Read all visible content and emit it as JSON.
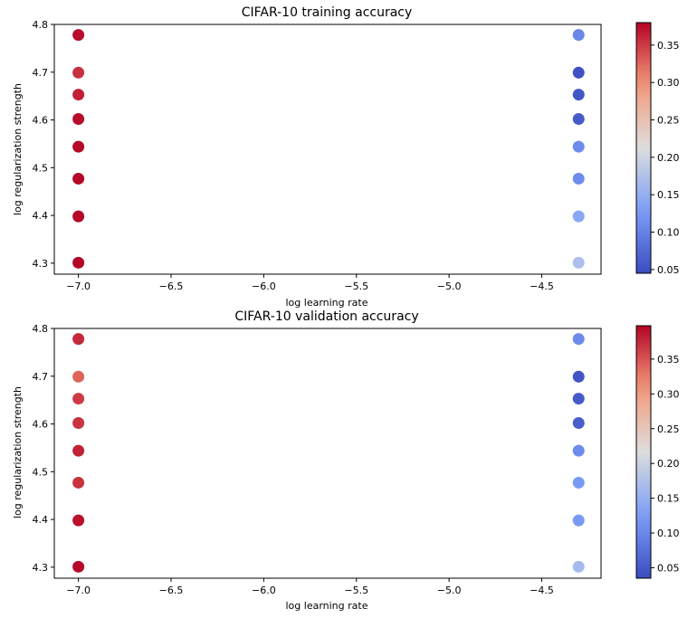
{
  "chart_data": [
    {
      "type": "scatter",
      "title": "CIFAR-10 training accuracy",
      "xlabel": "log learning rate",
      "ylabel": "log regularization strength",
      "xlim": [
        -7.13,
        -4.18
      ],
      "ylim": [
        4.277,
        4.8
      ],
      "xticks": [
        -7.0,
        -6.5,
        -6.0,
        -5.5,
        -5.0,
        -4.5
      ],
      "xtick_labels": [
        "−7.0",
        "−6.5",
        "−6.0",
        "−5.5",
        "−5.0",
        "−4.5"
      ],
      "yticks": [
        4.3,
        4.4,
        4.5,
        4.6,
        4.7,
        4.8
      ],
      "ytick_labels": [
        "4.3",
        "4.4",
        "4.5",
        "4.6",
        "4.7",
        "4.8"
      ],
      "colormap": "coolwarm",
      "clim": [
        0.045,
        0.38
      ],
      "colorbar_ticks": [
        0.05,
        0.1,
        0.15,
        0.2,
        0.25,
        0.3,
        0.35
      ],
      "colorbar_tick_labels": [
        "0.05",
        "0.10",
        "0.15",
        "0.20",
        "0.25",
        "0.30",
        "0.35"
      ],
      "points": [
        {
          "x": -7.0,
          "y": 4.778,
          "value": 0.375
        },
        {
          "x": -7.0,
          "y": 4.699,
          "value": 0.355
        },
        {
          "x": -7.0,
          "y": 4.653,
          "value": 0.365
        },
        {
          "x": -7.0,
          "y": 4.602,
          "value": 0.375
        },
        {
          "x": -7.0,
          "y": 4.544,
          "value": 0.378
        },
        {
          "x": -7.0,
          "y": 4.477,
          "value": 0.378
        },
        {
          "x": -7.0,
          "y": 4.398,
          "value": 0.378
        },
        {
          "x": -7.0,
          "y": 4.301,
          "value": 0.38
        },
        {
          "x": -4.301,
          "y": 4.778,
          "value": 0.105
        },
        {
          "x": -4.301,
          "y": 4.699,
          "value": 0.05
        },
        {
          "x": -4.301,
          "y": 4.653,
          "value": 0.055
        },
        {
          "x": -4.301,
          "y": 4.602,
          "value": 0.06
        },
        {
          "x": -4.301,
          "y": 4.544,
          "value": 0.11
        },
        {
          "x": -4.301,
          "y": 4.477,
          "value": 0.11
        },
        {
          "x": -4.301,
          "y": 4.398,
          "value": 0.14
        },
        {
          "x": -4.301,
          "y": 4.301,
          "value": 0.17
        }
      ]
    },
    {
      "type": "scatter",
      "title": "CIFAR-10 validation accuracy",
      "xlabel": "log learning rate",
      "ylabel": "log regularization strength",
      "xlim": [
        -7.13,
        -4.18
      ],
      "ylim": [
        4.277,
        4.8
      ],
      "xticks": [
        -7.0,
        -6.5,
        -6.0,
        -5.5,
        -5.0,
        -4.5
      ],
      "xtick_labels": [
        "−7.0",
        "−6.5",
        "−6.0",
        "−5.5",
        "−5.0",
        "−4.5"
      ],
      "yticks": [
        4.3,
        4.4,
        4.5,
        4.6,
        4.7,
        4.8
      ],
      "ytick_labels": [
        "4.3",
        "4.4",
        "4.5",
        "4.6",
        "4.7",
        "4.8"
      ],
      "colormap": "coolwarm",
      "clim": [
        0.035,
        0.398
      ],
      "colorbar_ticks": [
        0.05,
        0.1,
        0.15,
        0.2,
        0.25,
        0.3,
        0.35
      ],
      "colorbar_tick_labels": [
        "0.05",
        "0.10",
        "0.15",
        "0.20",
        "0.25",
        "0.30",
        "0.35"
      ],
      "points": [
        {
          "x": -7.0,
          "y": 4.778,
          "value": 0.375
        },
        {
          "x": -7.0,
          "y": 4.699,
          "value": 0.34
        },
        {
          "x": -7.0,
          "y": 4.653,
          "value": 0.365
        },
        {
          "x": -7.0,
          "y": 4.602,
          "value": 0.37
        },
        {
          "x": -7.0,
          "y": 4.544,
          "value": 0.38
        },
        {
          "x": -7.0,
          "y": 4.477,
          "value": 0.37
        },
        {
          "x": -7.0,
          "y": 4.398,
          "value": 0.39
        },
        {
          "x": -7.0,
          "y": 4.301,
          "value": 0.395
        },
        {
          "x": -4.301,
          "y": 4.778,
          "value": 0.105
        },
        {
          "x": -4.301,
          "y": 4.699,
          "value": 0.045
        },
        {
          "x": -4.301,
          "y": 4.653,
          "value": 0.05
        },
        {
          "x": -4.301,
          "y": 4.602,
          "value": 0.055
        },
        {
          "x": -4.301,
          "y": 4.544,
          "value": 0.105
        },
        {
          "x": -4.301,
          "y": 4.477,
          "value": 0.12
        },
        {
          "x": -4.301,
          "y": 4.398,
          "value": 0.12
        },
        {
          "x": -4.301,
          "y": 4.301,
          "value": 0.165
        }
      ]
    }
  ]
}
